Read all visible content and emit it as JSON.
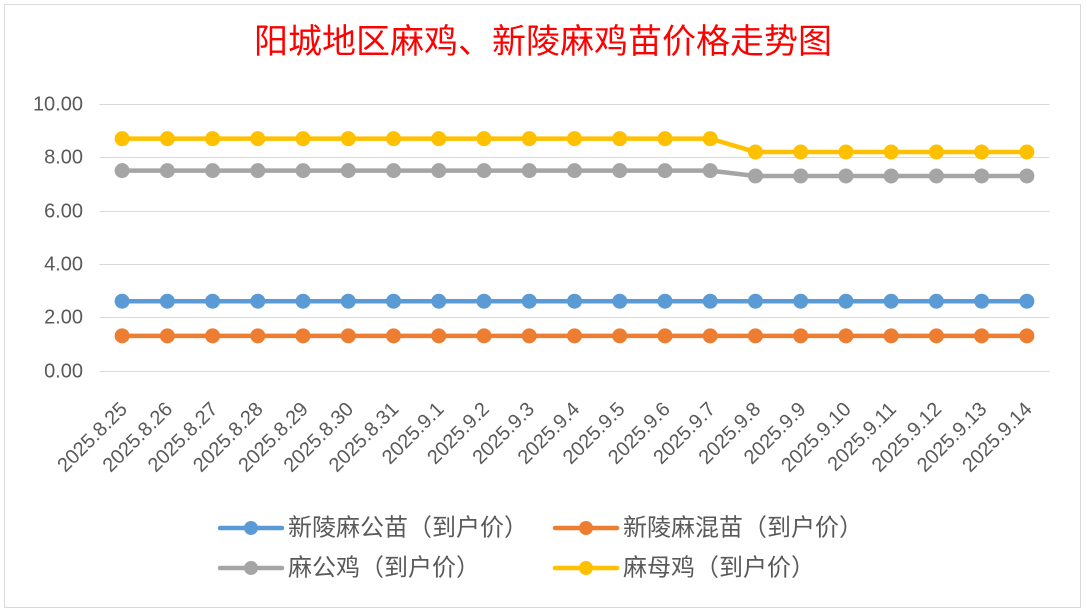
{
  "chart_data": {
    "type": "line",
    "title": "阳城地区麻鸡、新陵麻鸡苗价格走势图",
    "title_color": "#FF0000",
    "categories": [
      "2025.8.25",
      "2025.8.26",
      "2025.8.27",
      "2025.8.28",
      "2025.8.29",
      "2025.8.30",
      "2025.8.31",
      "2025.9.1",
      "2025.9.2",
      "2025.9.3",
      "2025.9.4",
      "2025.9.5",
      "2025.9.6",
      "2025.9.7",
      "2025.9.8",
      "2025.9.9",
      "2025.9.10",
      "2025.9.11",
      "2025.9.12",
      "2025.9.13",
      "2025.9.14"
    ],
    "series": [
      {
        "name": "新陵麻公苗（到户价）",
        "color": "#5B9BD5",
        "values": [
          2.6,
          2.6,
          2.6,
          2.6,
          2.6,
          2.6,
          2.6,
          2.6,
          2.6,
          2.6,
          2.6,
          2.6,
          2.6,
          2.6,
          2.6,
          2.6,
          2.6,
          2.6,
          2.6,
          2.6,
          2.6
        ]
      },
      {
        "name": "新陵麻混苗（到户价）",
        "color": "#ED7D31",
        "values": [
          1.3,
          1.3,
          1.3,
          1.3,
          1.3,
          1.3,
          1.3,
          1.3,
          1.3,
          1.3,
          1.3,
          1.3,
          1.3,
          1.3,
          1.3,
          1.3,
          1.3,
          1.3,
          1.3,
          1.3,
          1.3
        ]
      },
      {
        "name": "麻公鸡（到户价）",
        "color": "#A5A5A5",
        "values": [
          7.5,
          7.5,
          7.5,
          7.5,
          7.5,
          7.5,
          7.5,
          7.5,
          7.5,
          7.5,
          7.5,
          7.5,
          7.5,
          7.5,
          7.3,
          7.3,
          7.3,
          7.3,
          7.3,
          7.3,
          7.3
        ]
      },
      {
        "name": "麻母鸡（到户价）",
        "color": "#FFC000",
        "values": [
          8.7,
          8.7,
          8.7,
          8.7,
          8.7,
          8.7,
          8.7,
          8.7,
          8.7,
          8.7,
          8.7,
          8.7,
          8.7,
          8.7,
          8.2,
          8.2,
          8.2,
          8.2,
          8.2,
          8.2,
          8.2
        ]
      }
    ],
    "ylim": [
      0,
      10
    ],
    "yticks": [
      "0.00",
      "2.00",
      "4.00",
      "6.00",
      "8.00",
      "10.00"
    ],
    "grid": true,
    "legend": "bottom"
  }
}
